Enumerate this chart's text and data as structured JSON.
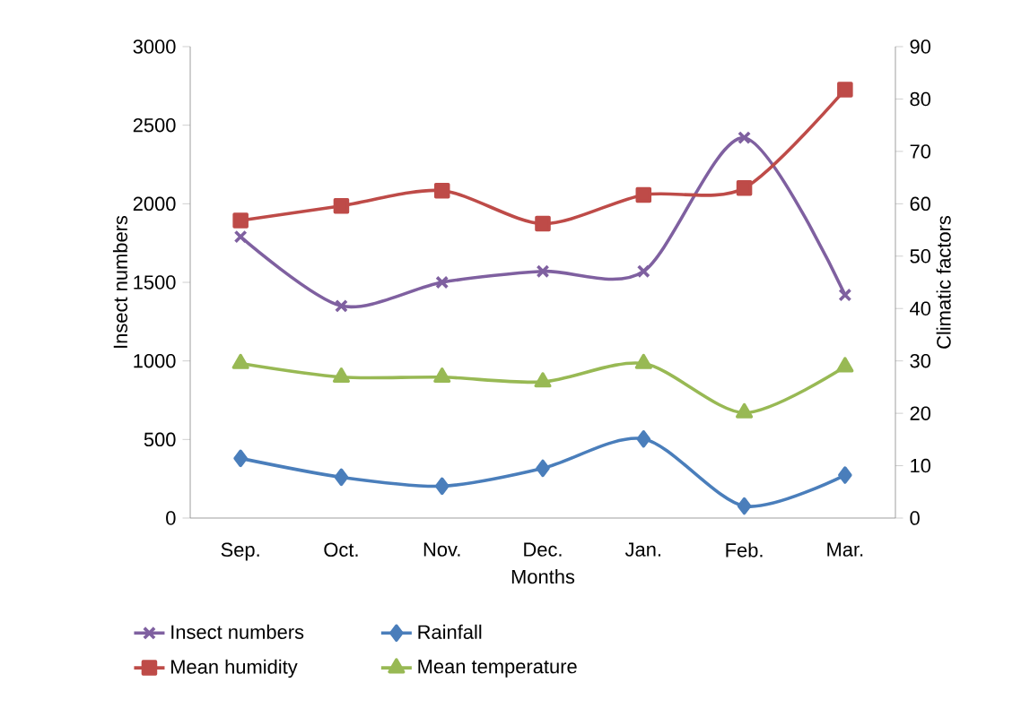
{
  "chart_data": {
    "type": "line",
    "xlabel": "Months",
    "ylabel": "Insect numbers",
    "y2label": "Climatic factors",
    "categories": [
      "Sep.",
      "Oct.",
      "Nov.",
      "Dec.",
      "Jan.",
      "Feb.",
      "Mar."
    ],
    "series": [
      {
        "name": "Insect numbers",
        "color": "#7f60a0",
        "marker": "cross",
        "values": [
          1790,
          1350,
          1500,
          1570,
          1570,
          2420,
          1420
        ]
      },
      {
        "name": "Rainfall",
        "color": "#4a7ebb",
        "marker": "diamond",
        "axis": "y2",
        "values": [
          11.4,
          7.8,
          6.1,
          9.5,
          15.1,
          2.3,
          8.2
        ]
      },
      {
        "name": "Mean humidity",
        "color": "#be4b48",
        "marker": "square",
        "axis": "y2",
        "values": [
          56.8,
          59.6,
          62.5,
          56.2,
          61.7,
          63.0,
          81.8
        ]
      },
      {
        "name": "Mean temperature",
        "color": "#98b954",
        "marker": "triangle",
        "axis": "y2",
        "values": [
          29.5,
          26.9,
          26.9,
          26.0,
          29.5,
          20.1,
          28.9
        ]
      }
    ],
    "ylim": [
      0,
      3000
    ],
    "yticks": [
      0,
      500,
      1000,
      1500,
      2000,
      2500,
      3000
    ],
    "y2lim": [
      0,
      90
    ],
    "y2ticks": [
      0,
      10,
      20,
      30,
      40,
      50,
      60,
      70,
      80,
      90
    ],
    "legend": "bottom",
    "grid": false
  }
}
